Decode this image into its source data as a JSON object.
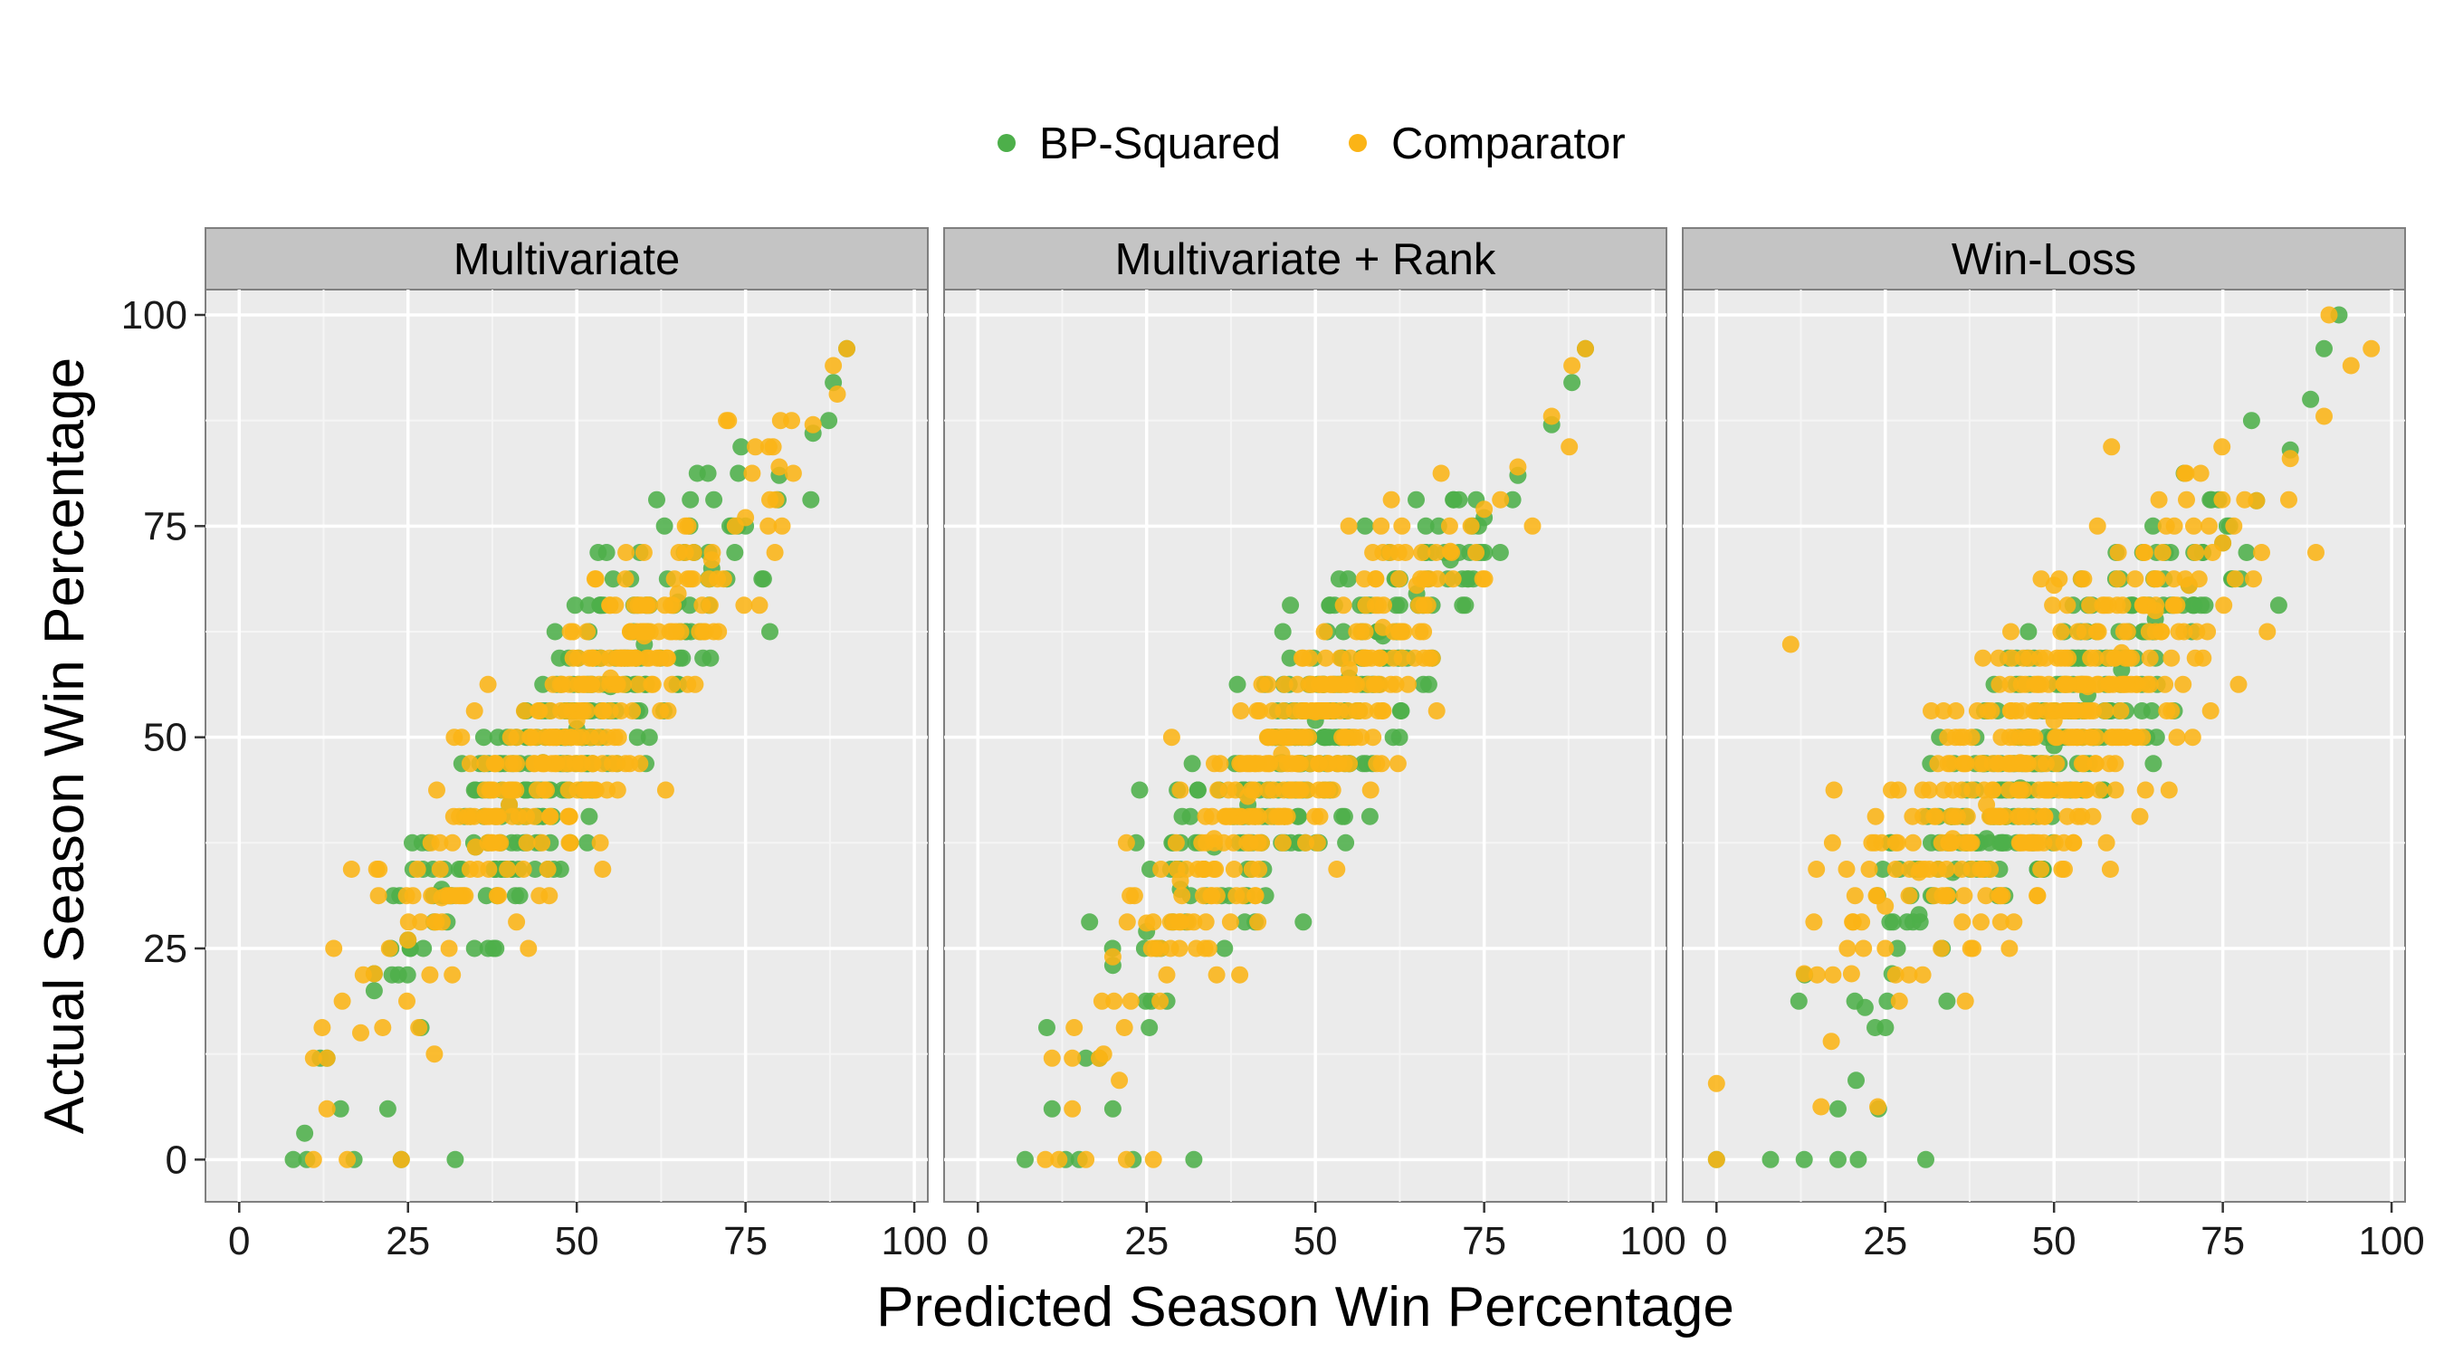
{
  "chart_data": {
    "type": "scatter",
    "xlabel": "Predicted Season Win Percentage",
    "ylabel": "Actual Season Win Percentage",
    "xlim": [
      -5,
      102
    ],
    "ylim": [
      -5,
      103
    ],
    "x_ticks": [
      0,
      25,
      50,
      75,
      100
    ],
    "y_ticks": [
      0,
      25,
      50,
      75,
      100
    ],
    "grid": true,
    "legend_placement": "top",
    "series": [
      {
        "name": "BP-Squared",
        "color": "#4DAF4A"
      },
      {
        "name": "Comparator",
        "color": "#FBB416"
      }
    ],
    "panels": [
      {
        "title": "Multivariate",
        "x_sd": 6.5,
        "bp_squared": {
          "x": [
            8,
            10,
            12,
            13,
            15,
            17,
            20,
            22,
            24,
            32,
            20,
            25,
            30,
            35,
            40,
            45,
            50,
            55,
            60,
            65,
            70,
            75,
            80,
            85,
            88,
            90
          ],
          "y": [
            0,
            0,
            12,
            12,
            6,
            0,
            20,
            6,
            0,
            0,
            22,
            26,
            32,
            37,
            42,
            47,
            51,
            56,
            61,
            66,
            70,
            75,
            81,
            86,
            92,
            96
          ]
        },
        "comparator": {
          "x": [
            11,
            13,
            16,
            24,
            11,
            13,
            14,
            18,
            20,
            25,
            30,
            35,
            40,
            45,
            50,
            55,
            60,
            65,
            70,
            75,
            80,
            85,
            88,
            90
          ],
          "y": [
            0,
            6,
            0,
            0,
            12,
            12,
            25,
            15,
            22,
            26,
            31,
            37,
            42,
            47,
            52,
            57,
            62,
            67,
            71,
            76,
            82,
            87,
            94,
            96
          ]
        }
      },
      {
        "title": "Multivariate + Rank",
        "x_sd": 6.0,
        "bp_squared": {
          "x": [
            7,
            11,
            13,
            15,
            16,
            18,
            20,
            23,
            32,
            20,
            25,
            30,
            35,
            40,
            45,
            50,
            55,
            60,
            65,
            70,
            75,
            80,
            85,
            88,
            90
          ],
          "y": [
            0,
            6,
            0,
            0,
            12,
            12,
            6,
            0,
            0,
            23,
            27,
            32,
            37,
            42,
            47,
            52,
            57,
            62,
            67,
            71,
            76,
            81,
            87,
            92,
            96
          ]
        },
        "comparator": {
          "x": [
            10,
            12,
            14,
            16,
            22,
            26,
            11,
            14,
            18,
            20,
            25,
            30,
            35,
            40,
            45,
            50,
            55,
            60,
            65,
            70,
            75,
            80,
            85,
            88,
            90
          ],
          "y": [
            0,
            0,
            6,
            0,
            0,
            0,
            12,
            12,
            12,
            24,
            28,
            33,
            38,
            43,
            48,
            53,
            58,
            63,
            68,
            72,
            77,
            82,
            88,
            94,
            96
          ]
        }
      },
      {
        "title": "Win-Loss",
        "x_sd": 6.5,
        "bp_squared": {
          "x": [
            0,
            8,
            13,
            18,
            21,
            24,
            31,
            18,
            22,
            26,
            30,
            35,
            40,
            45,
            50,
            55,
            60,
            65,
            70,
            75,
            80,
            85,
            88,
            90
          ],
          "y": [
            0,
            0,
            0,
            0,
            0,
            6,
            0,
            6,
            18,
            22,
            29,
            34,
            38,
            44,
            49,
            55,
            58,
            64,
            68,
            73,
            78,
            84,
            90,
            96
          ]
        },
        "comparator": {
          "x": [
            0,
            0,
            11,
            17,
            13,
            20,
            25,
            30,
            35,
            40,
            45,
            50,
            55,
            60,
            65,
            70,
            75,
            80,
            85,
            90,
            94,
            97,
            50
          ],
          "y": [
            0,
            9,
            61,
            14,
            22,
            22,
            30,
            34,
            38,
            42,
            47,
            52,
            56,
            60,
            65,
            68,
            73,
            78,
            83,
            88,
            94,
            96,
            68
          ]
        }
      }
    ]
  }
}
